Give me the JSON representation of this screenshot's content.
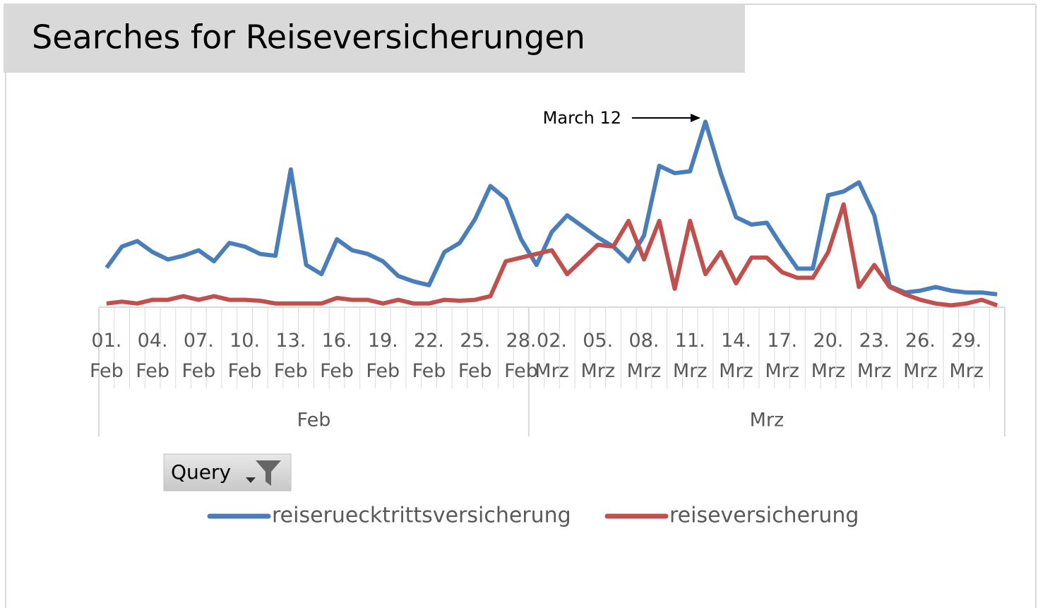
{
  "chart_data": {
    "type": "line",
    "title": "Searches for Reiseversicherungen",
    "categories": [
      "01. Feb",
      null,
      null,
      "04. Feb",
      null,
      null,
      "07. Feb",
      null,
      null,
      "10. Feb",
      null,
      null,
      "13. Feb",
      null,
      null,
      "16. Feb",
      null,
      null,
      "19. Feb",
      null,
      null,
      "22. Feb",
      null,
      null,
      "25. Feb",
      null,
      null,
      "28. Feb",
      null,
      "02. Mrz",
      null,
      null,
      "05. Mrz",
      null,
      null,
      "08. Mrz",
      null,
      null,
      "11. Mrz",
      null,
      null,
      "14. Mrz",
      null,
      null,
      "17. Mrz",
      null,
      null,
      "20. Mrz",
      null,
      null,
      "23. Mrz",
      null,
      null,
      "26. Mrz",
      null,
      null,
      "29. Mrz",
      null,
      null
    ],
    "groups": [
      {
        "label": "Feb",
        "start": 0
      },
      {
        "label": "Mrz",
        "start": 28
      }
    ],
    "series": [
      {
        "name": "reiseruecktrittsversicherung",
        "color": "#4a7ebb",
        "values": [
          21.5,
          33,
          36,
          30,
          26,
          28,
          31,
          25,
          35,
          33,
          29,
          28,
          75,
          23,
          18,
          37,
          31,
          29,
          25,
          17,
          14,
          12,
          30,
          35,
          48,
          66,
          59,
          37,
          23,
          41,
          50,
          44,
          38,
          33,
          25,
          39,
          77,
          73,
          74,
          101,
          73,
          49,
          45,
          46,
          33,
          21,
          21,
          61,
          63,
          68,
          50,
          11.5,
          8,
          9,
          11,
          9,
          8,
          8,
          7
        ]
      },
      {
        "name": "reiseversicherung",
        "color": "#c0504d",
        "values": [
          2,
          3,
          2,
          4,
          4,
          6,
          4,
          6,
          4,
          4,
          3.5,
          2,
          2,
          2,
          2,
          5,
          4,
          4,
          2,
          4,
          2,
          2,
          4,
          3.5,
          4,
          6,
          25,
          27,
          29,
          31,
          18,
          26,
          34,
          33,
          47,
          26,
          47,
          10,
          47,
          18,
          30,
          13,
          27,
          27,
          19,
          16,
          16,
          30,
          56,
          11,
          23,
          11,
          7,
          4,
          2,
          1,
          2,
          4,
          1
        ]
      }
    ],
    "annotation": "March 12",
    "legend_title": "Query",
    "ylim": [
      0,
      110
    ],
    "legend": "bottom"
  }
}
